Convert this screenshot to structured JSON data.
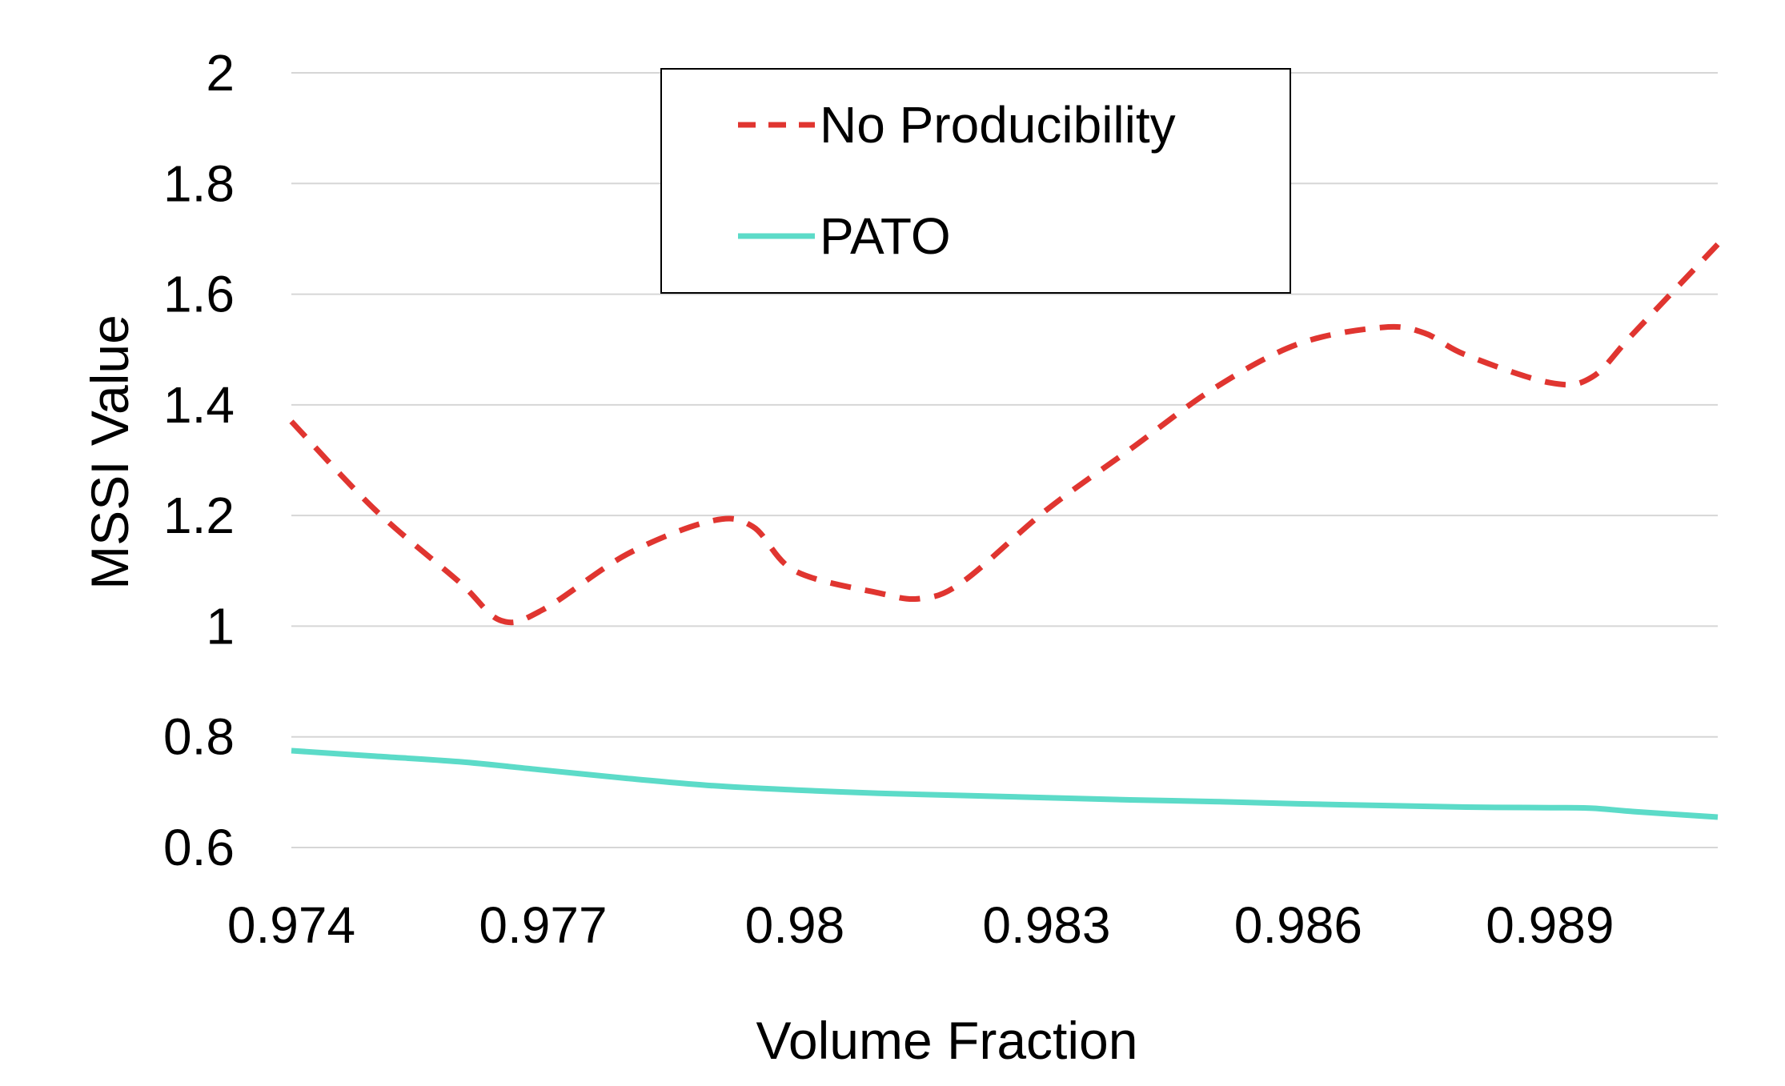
{
  "chart_data": {
    "type": "line",
    "title": "",
    "xlabel": "Volume Fraction",
    "ylabel": "MSSI Value",
    "xlim": [
      0.974,
      0.991
    ],
    "ylim": [
      0.6,
      2.0
    ],
    "xticks": [
      0.974,
      0.977,
      0.98,
      0.983,
      0.986,
      0.989
    ],
    "xtick_labels": [
      "0.974",
      "0.977",
      "0.98",
      "0.983",
      "0.986",
      "0.989"
    ],
    "yticks": [
      0.6,
      0.8,
      1.0,
      1.2,
      1.4,
      1.6,
      1.8,
      2.0
    ],
    "ytick_labels": [
      "0.6",
      "0.8",
      "1",
      "1.2",
      "1.4",
      "1.6",
      "1.8",
      "2"
    ],
    "grid": "horizontal",
    "legend_position": "top-center",
    "series": [
      {
        "name": "No Producibility",
        "color": "#e03530",
        "style": "dashed",
        "x": [
          0.974,
          0.975,
          0.976,
          0.9765,
          0.977,
          0.978,
          0.979,
          0.9795,
          0.98,
          0.981,
          0.9815,
          0.982,
          0.983,
          0.984,
          0.985,
          0.986,
          0.987,
          0.9875,
          0.988,
          0.989,
          0.9895,
          0.99,
          0.991
        ],
        "y": [
          1.37,
          1.21,
          1.08,
          1.01,
          1.03,
          1.13,
          1.19,
          1.18,
          1.1,
          1.06,
          1.05,
          1.08,
          1.21,
          1.32,
          1.43,
          1.51,
          1.54,
          1.53,
          1.49,
          1.44,
          1.45,
          1.53,
          1.69
        ]
      },
      {
        "name": "PATO",
        "color": "#5cdbc8",
        "style": "solid",
        "x": [
          0.974,
          0.975,
          0.976,
          0.977,
          0.978,
          0.979,
          0.98,
          0.981,
          0.982,
          0.983,
          0.984,
          0.985,
          0.986,
          0.987,
          0.988,
          0.989,
          0.9895,
          0.99,
          0.991
        ],
        "y": [
          0.775,
          0.765,
          0.755,
          0.74,
          0.725,
          0.712,
          0.704,
          0.698,
          0.694,
          0.69,
          0.686,
          0.683,
          0.679,
          0.676,
          0.673,
          0.672,
          0.671,
          0.665,
          0.655
        ]
      }
    ]
  }
}
